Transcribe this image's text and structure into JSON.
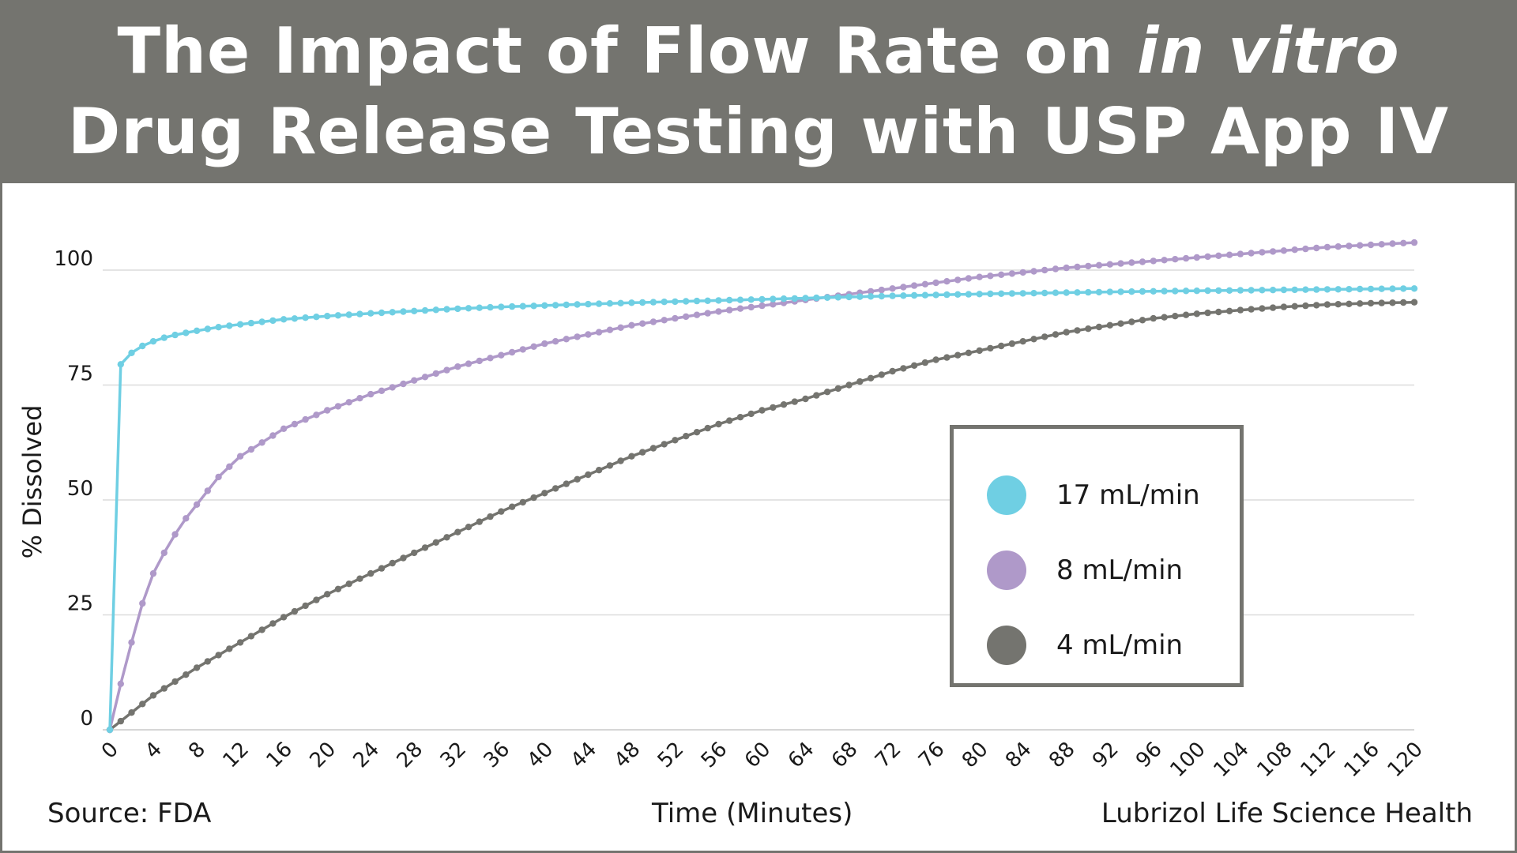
{
  "header": {
    "title_line1_plain": "The Impact of Flow Rate on ",
    "title_line1_italic": "in vitro",
    "title_line2": "Drug Release Testing with USP App IV"
  },
  "footer": {
    "source": "Source: FDA",
    "credit": "Lubrizol Life Science Health"
  },
  "chart_data": {
    "type": "line",
    "title": "The Impact of Flow Rate on in vitro Drug Release Testing with USP App IV",
    "xlabel": "Time (Minutes)",
    "ylabel": "% Dissolved",
    "xlim": [
      0,
      120
    ],
    "ylim": [
      0,
      108
    ],
    "x_ticks": [
      0,
      4,
      8,
      12,
      16,
      20,
      24,
      28,
      32,
      36,
      40,
      44,
      48,
      52,
      56,
      60,
      64,
      68,
      72,
      76,
      80,
      84,
      88,
      92,
      96,
      100,
      104,
      108,
      112,
      116,
      120
    ],
    "y_ticks": [
      0,
      25,
      50,
      75,
      100
    ],
    "grid": "horizontal",
    "legend_position": "center-right",
    "x_sampling": "every 1 minute, 0 to 120",
    "series": [
      {
        "name": "17 mL/min",
        "color": "#6fcfe3",
        "x": [
          0,
          1,
          2,
          3,
          4,
          5,
          6,
          8,
          10,
          12,
          16,
          20,
          24,
          28,
          32,
          36,
          40,
          48,
          56,
          64,
          72,
          80,
          88,
          96,
          104,
          112,
          120
        ],
        "values": [
          0,
          79.5,
          82,
          83.5,
          84.5,
          85.3,
          85.9,
          86.8,
          87.6,
          88.2,
          89.3,
          90.0,
          90.6,
          91.1,
          91.6,
          92.0,
          92.3,
          92.9,
          93.4,
          93.9,
          94.4,
          94.8,
          95.1,
          95.4,
          95.6,
          95.8,
          96.0
        ]
      },
      {
        "name": "8 mL/min",
        "color": "#af99c9",
        "x": [
          0,
          1,
          2,
          3,
          4,
          5,
          6,
          7,
          8,
          10,
          12,
          16,
          20,
          24,
          28,
          32,
          36,
          40,
          48,
          56,
          64,
          72,
          80,
          88,
          96,
          104,
          112,
          120
        ],
        "values": [
          0,
          10,
          19,
          27.5,
          34,
          38.5,
          42.5,
          46,
          49,
          55,
          59.5,
          65.5,
          69.5,
          73,
          76,
          79,
          81.5,
          84,
          88,
          91,
          93.5,
          96,
          98.5,
          100.5,
          102,
          103.5,
          105,
          106
        ]
      },
      {
        "name": "4 mL/min",
        "color": "#74746f",
        "x": [
          0,
          4,
          8,
          12,
          16,
          20,
          24,
          28,
          32,
          36,
          40,
          44,
          48,
          52,
          56,
          60,
          64,
          68,
          72,
          76,
          80,
          84,
          88,
          92,
          96,
          100,
          104,
          108,
          112,
          116,
          120
        ],
        "values": [
          0,
          7.5,
          13.5,
          19,
          24.5,
          29.5,
          34,
          38.5,
          43,
          47.5,
          51.5,
          55.5,
          59.5,
          63,
          66.5,
          69.5,
          72,
          75,
          78,
          80.5,
          82.5,
          84.5,
          86.5,
          88,
          89.5,
          90.5,
          91.3,
          92,
          92.5,
          92.8,
          93.0
        ]
      }
    ]
  }
}
